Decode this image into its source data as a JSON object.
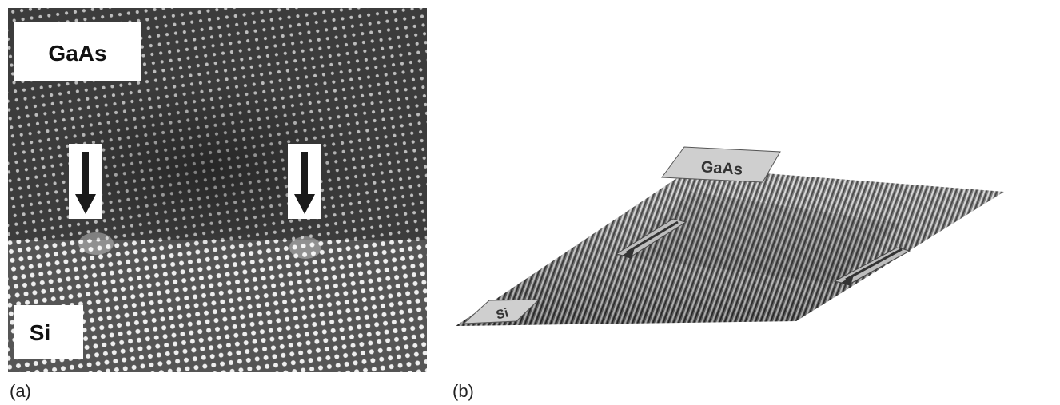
{
  "panel_a": {
    "caption": "(a)",
    "label_top": "GaAs",
    "label_bottom": "Si"
  },
  "panel_b": {
    "caption": "(b)",
    "label_top": "GaAs",
    "label_bottom": "Si"
  },
  "colors": {
    "lattice_dark": "#3a3a3a",
    "lattice_bright": "#e6e6e6",
    "arrow": "#1a1a1a",
    "label_bg": "#ffffff"
  }
}
